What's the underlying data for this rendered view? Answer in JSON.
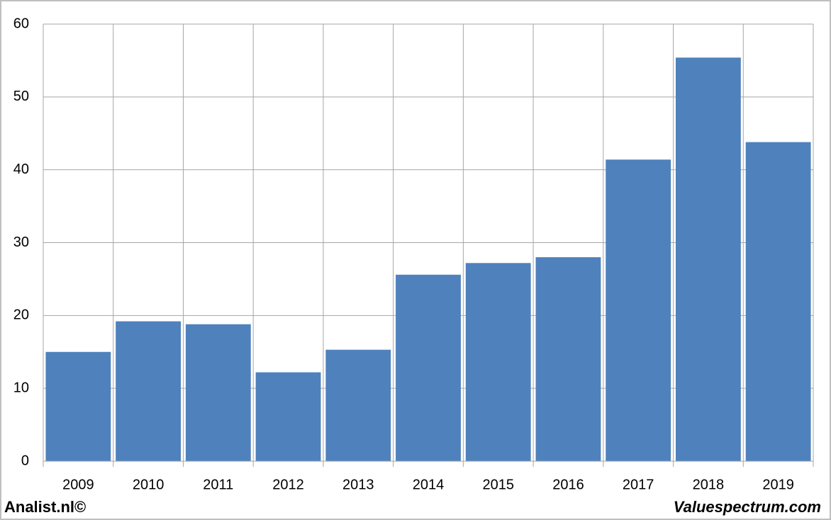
{
  "chart_data": {
    "type": "bar",
    "categories": [
      "2009",
      "2010",
      "2011",
      "2012",
      "2013",
      "2014",
      "2015",
      "2016",
      "2017",
      "2018",
      "2019"
    ],
    "values": [
      15.0,
      19.2,
      18.8,
      12.2,
      15.3,
      25.6,
      27.2,
      28.0,
      41.4,
      55.4,
      43.8
    ],
    "color": "#4f81bd",
    "ylim": [
      0,
      60
    ],
    "yticks": [
      0,
      10,
      20,
      30,
      40,
      50,
      60
    ],
    "grid": true
  },
  "footer": {
    "left": "Analist.nl©",
    "right": "Valuespectrum.com"
  }
}
